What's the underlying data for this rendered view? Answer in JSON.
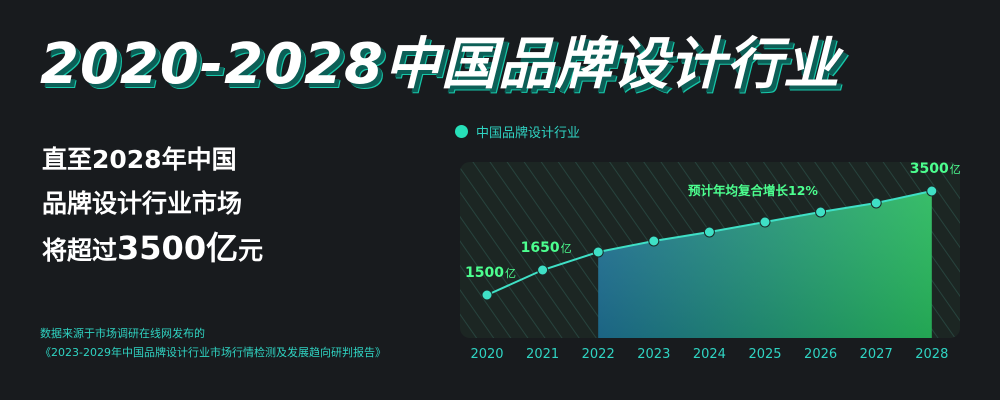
{
  "title": "2020-2028中国品牌设计行业",
  "headline": {
    "line1": "直至2028年中国",
    "line2": "品牌设计行业市场",
    "line3_prefix": "将超过",
    "line3_number": "3500亿",
    "line3_suffix": "元"
  },
  "source": {
    "line1": "数据来源于市场调研在线网发布的",
    "line2": "《2023-2029年中国品牌设计行业市场行情检测及发展趋向研判报告》"
  },
  "colors": {
    "background": "#181b1e",
    "accent": "#27e0b9",
    "label_green": "#4cff8f",
    "title_shadow": "#16c7a9"
  },
  "chart_data": {
    "type": "line",
    "categories": [
      "2020",
      "2021",
      "2022",
      "2023",
      "2024",
      "2025",
      "2026",
      "2027",
      "2028"
    ],
    "series": [
      {
        "name": "中国品牌设计行业",
        "values": [
          1500,
          1650,
          1760,
          1840,
          1930,
          2030,
          2130,
          2230,
          3500
        ]
      }
    ],
    "point_labels": [
      {
        "index": 0,
        "value": "1500",
        "unit": "亿"
      },
      {
        "index": 1,
        "value": "1650",
        "unit": "亿"
      },
      {
        "index": 8,
        "value": "3500",
        "unit": "亿"
      }
    ],
    "annotation": "预计年均复合增长12%",
    "shaded_from_category": "2022",
    "legend_position": "top-left"
  }
}
